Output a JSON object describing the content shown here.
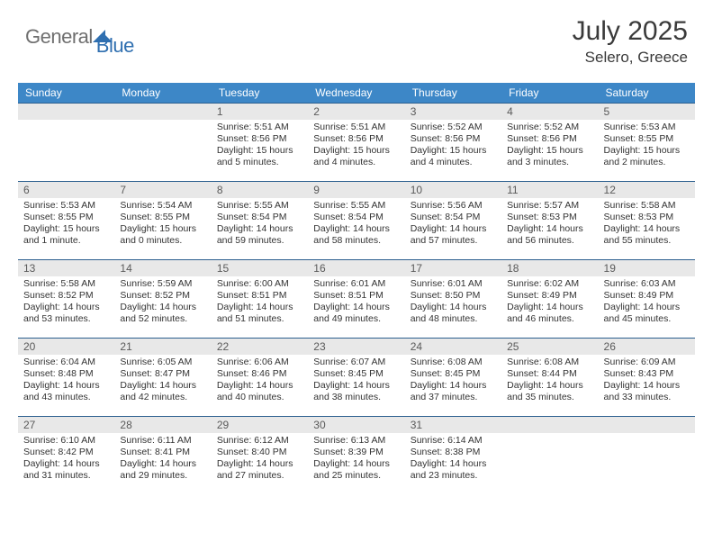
{
  "logo": {
    "text1": "General",
    "text2": "Blue"
  },
  "title": "July 2025",
  "location": "Selero, Greece",
  "colors": {
    "header_bg": "#3d87c7",
    "header_text": "#ffffff",
    "daynum_bg": "#e8e8e8",
    "daynum_text": "#5a5a5a",
    "border": "#2b5f8f",
    "body_text": "#333333",
    "logo_gray": "#6f6f6f",
    "logo_blue": "#2f6fb0"
  },
  "day_headers": [
    "Sunday",
    "Monday",
    "Tuesday",
    "Wednesday",
    "Thursday",
    "Friday",
    "Saturday"
  ],
  "weeks": [
    [
      null,
      null,
      {
        "n": "1",
        "sr": "5:51 AM",
        "ss": "8:56 PM",
        "dl": "15 hours and 5 minutes."
      },
      {
        "n": "2",
        "sr": "5:51 AM",
        "ss": "8:56 PM",
        "dl": "15 hours and 4 minutes."
      },
      {
        "n": "3",
        "sr": "5:52 AM",
        "ss": "8:56 PM",
        "dl": "15 hours and 4 minutes."
      },
      {
        "n": "4",
        "sr": "5:52 AM",
        "ss": "8:56 PM",
        "dl": "15 hours and 3 minutes."
      },
      {
        "n": "5",
        "sr": "5:53 AM",
        "ss": "8:55 PM",
        "dl": "15 hours and 2 minutes."
      }
    ],
    [
      {
        "n": "6",
        "sr": "5:53 AM",
        "ss": "8:55 PM",
        "dl": "15 hours and 1 minute."
      },
      {
        "n": "7",
        "sr": "5:54 AM",
        "ss": "8:55 PM",
        "dl": "15 hours and 0 minutes."
      },
      {
        "n": "8",
        "sr": "5:55 AM",
        "ss": "8:54 PM",
        "dl": "14 hours and 59 minutes."
      },
      {
        "n": "9",
        "sr": "5:55 AM",
        "ss": "8:54 PM",
        "dl": "14 hours and 58 minutes."
      },
      {
        "n": "10",
        "sr": "5:56 AM",
        "ss": "8:54 PM",
        "dl": "14 hours and 57 minutes."
      },
      {
        "n": "11",
        "sr": "5:57 AM",
        "ss": "8:53 PM",
        "dl": "14 hours and 56 minutes."
      },
      {
        "n": "12",
        "sr": "5:58 AM",
        "ss": "8:53 PM",
        "dl": "14 hours and 55 minutes."
      }
    ],
    [
      {
        "n": "13",
        "sr": "5:58 AM",
        "ss": "8:52 PM",
        "dl": "14 hours and 53 minutes."
      },
      {
        "n": "14",
        "sr": "5:59 AM",
        "ss": "8:52 PM",
        "dl": "14 hours and 52 minutes."
      },
      {
        "n": "15",
        "sr": "6:00 AM",
        "ss": "8:51 PM",
        "dl": "14 hours and 51 minutes."
      },
      {
        "n": "16",
        "sr": "6:01 AM",
        "ss": "8:51 PM",
        "dl": "14 hours and 49 minutes."
      },
      {
        "n": "17",
        "sr": "6:01 AM",
        "ss": "8:50 PM",
        "dl": "14 hours and 48 minutes."
      },
      {
        "n": "18",
        "sr": "6:02 AM",
        "ss": "8:49 PM",
        "dl": "14 hours and 46 minutes."
      },
      {
        "n": "19",
        "sr": "6:03 AM",
        "ss": "8:49 PM",
        "dl": "14 hours and 45 minutes."
      }
    ],
    [
      {
        "n": "20",
        "sr": "6:04 AM",
        "ss": "8:48 PM",
        "dl": "14 hours and 43 minutes."
      },
      {
        "n": "21",
        "sr": "6:05 AM",
        "ss": "8:47 PM",
        "dl": "14 hours and 42 minutes."
      },
      {
        "n": "22",
        "sr": "6:06 AM",
        "ss": "8:46 PM",
        "dl": "14 hours and 40 minutes."
      },
      {
        "n": "23",
        "sr": "6:07 AM",
        "ss": "8:45 PM",
        "dl": "14 hours and 38 minutes."
      },
      {
        "n": "24",
        "sr": "6:08 AM",
        "ss": "8:45 PM",
        "dl": "14 hours and 37 minutes."
      },
      {
        "n": "25",
        "sr": "6:08 AM",
        "ss": "8:44 PM",
        "dl": "14 hours and 35 minutes."
      },
      {
        "n": "26",
        "sr": "6:09 AM",
        "ss": "8:43 PM",
        "dl": "14 hours and 33 minutes."
      }
    ],
    [
      {
        "n": "27",
        "sr": "6:10 AM",
        "ss": "8:42 PM",
        "dl": "14 hours and 31 minutes."
      },
      {
        "n": "28",
        "sr": "6:11 AM",
        "ss": "8:41 PM",
        "dl": "14 hours and 29 minutes."
      },
      {
        "n": "29",
        "sr": "6:12 AM",
        "ss": "8:40 PM",
        "dl": "14 hours and 27 minutes."
      },
      {
        "n": "30",
        "sr": "6:13 AM",
        "ss": "8:39 PM",
        "dl": "14 hours and 25 minutes."
      },
      {
        "n": "31",
        "sr": "6:14 AM",
        "ss": "8:38 PM",
        "dl": "14 hours and 23 minutes."
      },
      null,
      null
    ]
  ],
  "labels": {
    "sunrise": "Sunrise: ",
    "sunset": "Sunset: ",
    "daylight": "Daylight: "
  }
}
